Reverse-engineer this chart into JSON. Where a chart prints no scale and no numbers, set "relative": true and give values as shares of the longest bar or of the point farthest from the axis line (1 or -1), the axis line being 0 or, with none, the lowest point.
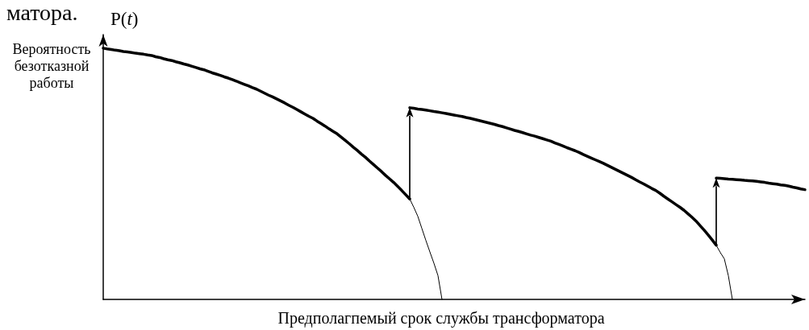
{
  "chart_data": {
    "type": "line",
    "relative": true,
    "ylabel": "P(t)",
    "xlabel": "Предполагпемый срок службы трансформатора",
    "annotations": [
      "Вероятность безотказной работы",
      "матора."
    ],
    "categories": [
      null,
      null,
      null,
      null,
      null,
      null,
      null,
      null,
      null,
      null,
      null,
      null,
      null,
      null,
      null,
      null,
      null,
      null,
      null,
      null,
      null,
      null,
      null,
      null,
      null,
      null,
      null,
      null,
      null,
      null,
      null,
      null,
      null,
      null,
      null,
      null,
      null,
      null,
      null,
      null,
      null,
      null,
      null,
      null,
      null,
      null,
      null,
      null,
      null,
      null,
      null,
      null,
      null,
      null,
      null,
      null,
      null,
      null,
      null,
      null,
      null,
      null,
      null,
      null,
      null,
      null,
      null,
      null,
      null,
      null,
      null,
      null,
      null,
      null,
      null,
      null,
      null,
      null,
      null,
      null,
      null,
      null,
      null,
      null,
      null,
      null,
      null,
      null,
      null,
      null,
      null,
      null,
      null,
      null,
      null,
      null,
      null,
      null,
      null,
      null,
      null,
      null,
      null,
      null,
      null,
      null,
      null,
      null,
      null,
      null,
      null,
      null,
      null,
      null,
      null,
      null,
      null,
      null,
      null,
      null,
      null,
      null,
      null,
      null,
      null,
      null,
      null,
      null,
      null,
      null,
      null,
      null,
      null,
      null,
      null,
      null,
      null,
      null,
      null,
      null,
      null,
      null,
      null,
      null,
      null,
      null,
      null,
      null,
      null,
      null,
      null,
      null,
      null,
      null,
      null,
      null,
      null,
      null,
      null,
      null,
      null,
      null,
      null,
      null,
      null,
      null,
      null,
      null,
      null,
      null,
      null,
      null,
      null,
      null,
      null
    ],
    "series": [
      {
        "color": "#000000",
        "values": [
          1.0,
          0.997,
          0.995,
          0.992,
          0.99,
          0.987,
          0.985,
          0.983,
          0.98,
          0.978,
          0.976,
          0.973,
          0.971,
          0.966,
          0.963,
          0.958,
          0.954,
          0.951,
          0.946,
          0.942,
          0.937,
          0.933,
          0.928,
          0.923,
          0.918,
          0.914,
          0.908,
          0.902,
          0.897,
          0.892,
          0.886,
          0.881,
          0.875,
          0.869,
          0.862,
          0.856,
          0.85,
          0.843,
          0.837,
          0.829,
          0.821,
          0.813,
          0.806,
          0.798,
          0.79,
          0.782,
          0.773,
          0.765,
          0.756,
          0.747,
          0.738,
          0.729,
          0.721,
          0.71,
          0.7,
          0.69,
          0.679,
          0.669,
          0.659,
          0.646,
          0.633,
          0.62,
          0.606,
          0.593,
          0.579,
          0.566,
          0.551,
          0.537,
          0.523,
          0.509,
          0.494,
          0.48,
          0.466,
          0.45,
          0.434,
          0.417,
          0.4,
          null,
          null,
          null,
          null,
          null,
          null,
          null,
          null,
          null,
          null,
          null,
          null,
          null,
          null,
          null,
          null,
          null,
          null,
          null,
          null,
          null,
          null,
          null,
          null,
          null,
          null,
          null,
          null,
          null,
          null,
          null,
          null,
          null,
          null,
          null,
          null,
          null,
          null,
          null,
          null,
          null,
          null,
          null,
          null,
          null,
          null,
          null,
          null,
          null,
          null,
          null,
          null,
          null,
          null,
          null,
          null,
          null,
          null,
          null,
          null,
          null,
          null,
          null,
          null,
          null,
          null,
          null,
          null,
          null,
          null,
          null,
          null,
          null,
          null,
          null,
          null,
          null,
          null,
          null,
          null,
          null,
          null,
          null,
          null,
          null,
          null,
          null,
          null,
          null,
          null,
          null,
          null,
          null,
          null,
          null,
          null,
          null,
          null
        ]
      },
      {
        "color": "#000000",
        "values": [
          null,
          null,
          null,
          null,
          null,
          null,
          null,
          null,
          null,
          null,
          null,
          null,
          null,
          null,
          null,
          null,
          null,
          null,
          null,
          null,
          null,
          null,
          null,
          null,
          null,
          null,
          null,
          null,
          null,
          null,
          null,
          null,
          null,
          null,
          null,
          null,
          null,
          null,
          null,
          null,
          null,
          null,
          null,
          null,
          null,
          null,
          null,
          null,
          null,
          null,
          null,
          null,
          null,
          null,
          null,
          null,
          null,
          null,
          null,
          null,
          null,
          null,
          null,
          null,
          null,
          null,
          null,
          null,
          null,
          null,
          null,
          null,
          null,
          null,
          null,
          null,
          0.4,
          0.367,
          0.331,
          0.283,
          0.235,
          0.189,
          0.144,
          0.095,
          0,
          null,
          null,
          null,
          null,
          null,
          null,
          null,
          null,
          null,
          null,
          null,
          null,
          null,
          null,
          null,
          null,
          null,
          null,
          null,
          null,
          null,
          null,
          null,
          null,
          null,
          null,
          null,
          null,
          null,
          null,
          null,
          null,
          null,
          null,
          null,
          null,
          null,
          null,
          null,
          null,
          null,
          null,
          null,
          null,
          null,
          null,
          null,
          null,
          null,
          null,
          null,
          null,
          null,
          null,
          null,
          null,
          null,
          null,
          null,
          null,
          null,
          null,
          null,
          null,
          null,
          null,
          null,
          null,
          null,
          null,
          null,
          null,
          null,
          null,
          null,
          null,
          null,
          null,
          null,
          null,
          null,
          null,
          null,
          null,
          null,
          null,
          null,
          null,
          null,
          null
        ]
      },
      {
        "color": "#000000",
        "values": [
          null,
          null,
          null,
          null,
          null,
          null,
          null,
          null,
          null,
          null,
          null,
          null,
          null,
          null,
          null,
          null,
          null,
          null,
          null,
          null,
          null,
          null,
          null,
          null,
          null,
          null,
          null,
          null,
          null,
          null,
          null,
          null,
          null,
          null,
          null,
          null,
          null,
          null,
          null,
          null,
          null,
          null,
          null,
          null,
          null,
          null,
          null,
          null,
          null,
          null,
          null,
          null,
          null,
          null,
          null,
          null,
          null,
          null,
          null,
          null,
          null,
          null,
          null,
          null,
          null,
          null,
          null,
          null,
          null,
          null,
          null,
          null,
          null,
          null,
          null,
          null,
          0.763,
          0.761,
          0.758,
          0.756,
          0.754,
          0.751,
          0.748,
          0.746,
          0.743,
          0.74,
          0.737,
          0.734,
          0.731,
          0.728,
          0.724,
          0.721,
          0.717,
          0.713,
          0.709,
          0.705,
          0.701,
          0.697,
          0.692,
          0.688,
          0.683,
          0.678,
          0.673,
          0.669,
          0.664,
          0.659,
          0.654,
          0.65,
          0.645,
          0.64,
          0.635,
          0.63,
          0.623,
          0.617,
          0.611,
          0.604,
          0.598,
          0.592,
          0.585,
          0.577,
          0.57,
          0.563,
          0.556,
          0.549,
          0.542,
          0.534,
          0.526,
          0.518,
          0.51,
          0.502,
          0.494,
          0.486,
          0.477,
          0.468,
          0.46,
          0.451,
          0.442,
          0.434,
          0.423,
          0.411,
          0.4,
          0.389,
          0.378,
          0.367,
          0.355,
          0.341,
          0.327,
          0.312,
          0.294,
          0.276,
          0.257,
          0.237,
          0.216,
          null,
          null,
          null,
          null,
          null,
          null,
          null,
          null,
          null,
          null,
          null,
          null,
          null,
          null,
          null,
          null,
          null,
          null,
          null,
          null,
          null,
          null
        ]
      },
      {
        "color": "#000000",
        "values": [
          null,
          null,
          null,
          null,
          null,
          null,
          null,
          null,
          null,
          null,
          null,
          null,
          null,
          null,
          null,
          null,
          null,
          null,
          null,
          null,
          null,
          null,
          null,
          null,
          null,
          null,
          null,
          null,
          null,
          null,
          null,
          null,
          null,
          null,
          null,
          null,
          null,
          null,
          null,
          null,
          null,
          null,
          null,
          null,
          null,
          null,
          null,
          null,
          null,
          null,
          null,
          null,
          null,
          null,
          null,
          null,
          null,
          null,
          null,
          null,
          null,
          null,
          null,
          null,
          null,
          null,
          null,
          null,
          null,
          null,
          null,
          null,
          null,
          null,
          null,
          null,
          null,
          null,
          null,
          null,
          null,
          null,
          null,
          null,
          null,
          null,
          null,
          null,
          null,
          null,
          null,
          null,
          null,
          null,
          null,
          null,
          null,
          null,
          null,
          null,
          null,
          null,
          null,
          null,
          null,
          null,
          null,
          null,
          null,
          null,
          null,
          null,
          null,
          null,
          null,
          null,
          null,
          null,
          null,
          null,
          null,
          null,
          null,
          null,
          null,
          null,
          null,
          null,
          null,
          null,
          null,
          null,
          null,
          null,
          null,
          null,
          null,
          null,
          null,
          null,
          null,
          null,
          null,
          null,
          null,
          null,
          null,
          null,
          null,
          null,
          null,
          null,
          0.216,
          0.187,
          0.162,
          0.095,
          0,
          null,
          null,
          null,
          null,
          null,
          null,
          null,
          null,
          null,
          null,
          null,
          null,
          null,
          null,
          null,
          null,
          null,
          null
        ]
      },
      {
        "color": "#000000",
        "values": [
          null,
          null,
          null,
          null,
          null,
          null,
          null,
          null,
          null,
          null,
          null,
          null,
          null,
          null,
          null,
          null,
          null,
          null,
          null,
          null,
          null,
          null,
          null,
          null,
          null,
          null,
          null,
          null,
          null,
          null,
          null,
          null,
          null,
          null,
          null,
          null,
          null,
          null,
          null,
          null,
          null,
          null,
          null,
          null,
          null,
          null,
          null,
          null,
          null,
          null,
          null,
          null,
          null,
          null,
          null,
          null,
          null,
          null,
          null,
          null,
          null,
          null,
          null,
          null,
          null,
          null,
          null,
          null,
          null,
          null,
          null,
          null,
          null,
          null,
          null,
          null,
          null,
          null,
          null,
          null,
          null,
          null,
          null,
          null,
          null,
          null,
          null,
          null,
          null,
          null,
          null,
          null,
          null,
          null,
          null,
          null,
          null,
          null,
          null,
          null,
          null,
          null,
          null,
          null,
          null,
          null,
          null,
          null,
          null,
          null,
          null,
          null,
          null,
          null,
          null,
          null,
          null,
          null,
          null,
          null,
          null,
          null,
          null,
          null,
          null,
          null,
          null,
          null,
          null,
          null,
          null,
          null,
          null,
          null,
          null,
          null,
          null,
          null,
          null,
          null,
          null,
          null,
          null,
          null,
          null,
          null,
          null,
          null,
          null,
          null,
          null,
          null,
          0.483,
          0.482,
          0.481,
          0.479,
          0.478,
          0.477,
          0.476,
          0.474,
          0.473,
          0.472,
          0.47,
          0.468,
          0.466,
          0.463,
          0.461,
          0.459,
          0.456,
          0.454,
          0.451,
          0.447,
          0.444,
          0.44,
          0.437
        ]
      }
    ]
  }
}
